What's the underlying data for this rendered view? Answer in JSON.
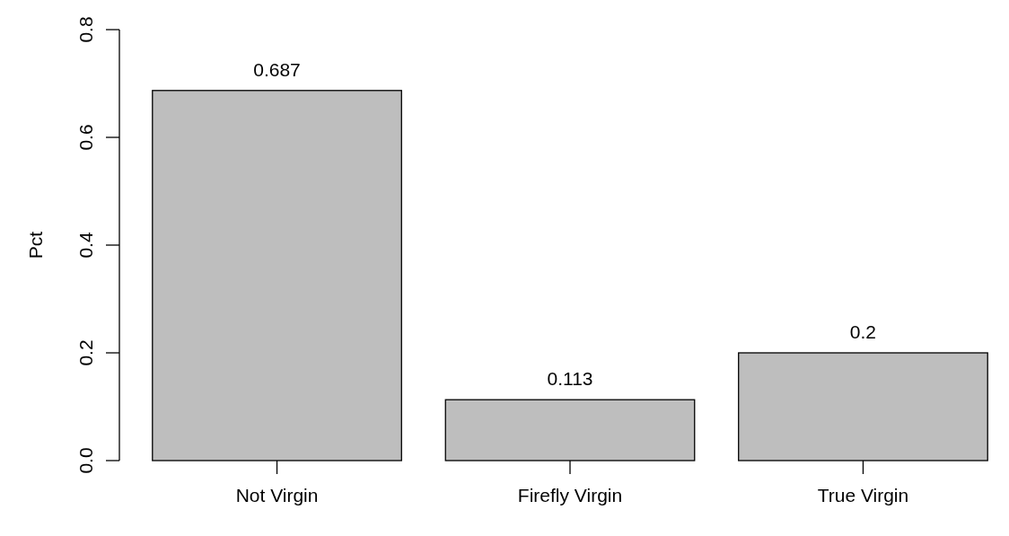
{
  "chart_data": {
    "type": "bar",
    "ylabel": "Pct",
    "categories": [
      "Not Virgin",
      "Firefly Virgin",
      "True Virgin"
    ],
    "values": [
      0.687,
      0.113,
      0.2
    ],
    "color": "#bebebe",
    "ylim": [
      0,
      0.8
    ],
    "yticks": [
      {
        "value": 0,
        "label": "0.0"
      },
      0.2,
      0.4,
      0.6,
      0.8
    ],
    "data_labels": true
  }
}
